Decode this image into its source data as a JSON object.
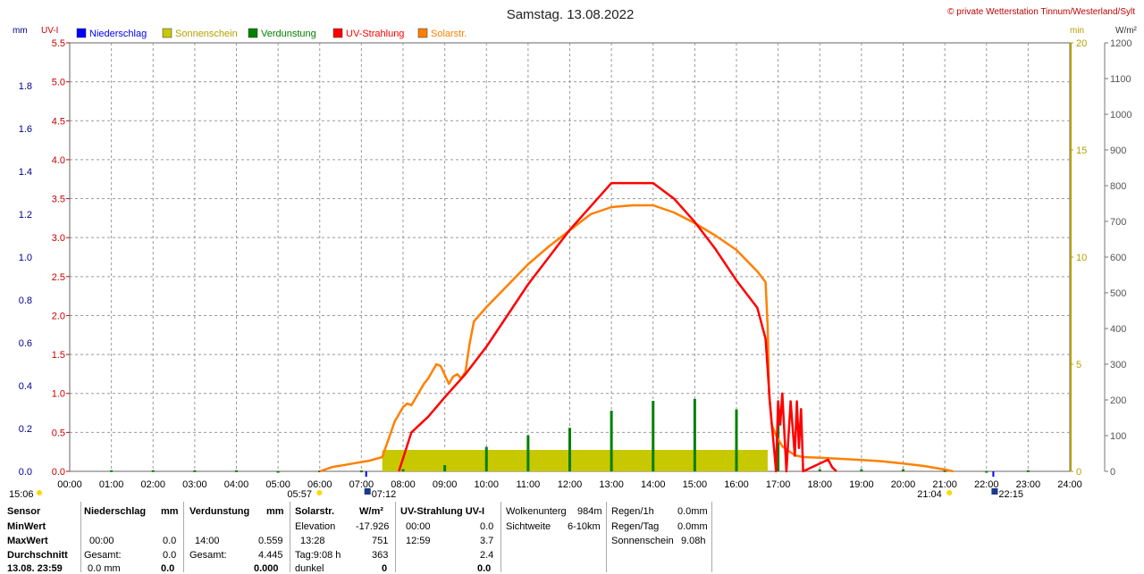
{
  "header": {
    "title": "Samstag. 13.08.2022",
    "copyright": "© private Wetterstation Tinnum/Westerland/Sylt",
    "unit_left_mm": "mm",
    "unit_left_uv": "UV-I",
    "unit_right_min": "min",
    "unit_right_wm2": "W/m²"
  },
  "legend": [
    {
      "label": "Niederschlag",
      "color": "#0000ff"
    },
    {
      "label": "Sonnenschein",
      "color": "#c8c800"
    },
    {
      "label": "Verdunstung",
      "color": "#008000"
    },
    {
      "label": "UV-Strahlung",
      "color": "#ff0000"
    },
    {
      "label": "Solarstr.",
      "color": "#ff8000"
    }
  ],
  "chart_data": {
    "type": "line",
    "x_ticks": [
      "00:00",
      "01:00",
      "02:00",
      "03:00",
      "04:00",
      "05:00",
      "06:00",
      "07:00",
      "08:00",
      "09:00",
      "10:00",
      "11:00",
      "12:00",
      "13:00",
      "14:00",
      "15:00",
      "16:00",
      "17:00",
      "18:00",
      "19:00",
      "20:00",
      "21:00",
      "22:00",
      "23:00",
      "24:00"
    ],
    "axes": {
      "mm": {
        "ticks": [
          "0.0",
          "0.2",
          "0.4",
          "0.6",
          "0.8",
          "1.0",
          "1.2",
          "1.4",
          "1.6",
          "1.8"
        ],
        "ylim": [
          0,
          2.0
        ],
        "color": "#00008b"
      },
      "uv": {
        "ticks": [
          "0.0",
          "0.5",
          "1.0",
          "1.5",
          "2.0",
          "2.5",
          "3.0",
          "3.5",
          "4.0",
          "4.5",
          "5.0",
          "5.5"
        ],
        "ylim": [
          0,
          5.5
        ],
        "color": "#c80000"
      },
      "min": {
        "ticks": [
          "0",
          "5",
          "10",
          "15",
          "20"
        ],
        "ylim": [
          0,
          20
        ],
        "color": "#b4a000"
      },
      "wm2": {
        "ticks": [
          "0",
          "100",
          "200",
          "300",
          "400",
          "500",
          "600",
          "700",
          "800",
          "900",
          "1000",
          "1100",
          "1200"
        ],
        "ylim": [
          0,
          1200
        ],
        "color": "#555555"
      }
    },
    "sun_markers": {
      "sunrise": "05:57",
      "sunset": "21:04",
      "dawn_start": "07:12",
      "dusk_end": "22:15",
      "left": "15:06"
    },
    "series": [
      {
        "name": "Solarstr.",
        "unit": "W/m²",
        "color": "#ff8000",
        "points": [
          [
            6.0,
            0
          ],
          [
            6.3,
            12
          ],
          [
            6.8,
            22
          ],
          [
            7.2,
            30
          ],
          [
            7.5,
            40
          ],
          [
            7.65,
            90
          ],
          [
            7.8,
            140
          ],
          [
            8.0,
            180
          ],
          [
            8.1,
            190
          ],
          [
            8.2,
            185
          ],
          [
            8.3,
            205
          ],
          [
            8.5,
            245
          ],
          [
            8.6,
            260
          ],
          [
            8.75,
            290
          ],
          [
            8.8,
            300
          ],
          [
            8.9,
            295
          ],
          [
            9.0,
            270
          ],
          [
            9.1,
            245
          ],
          [
            9.2,
            265
          ],
          [
            9.3,
            272
          ],
          [
            9.4,
            260
          ],
          [
            9.5,
            280
          ],
          [
            9.6,
            360
          ],
          [
            9.7,
            420
          ],
          [
            10.0,
            460
          ],
          [
            10.5,
            520
          ],
          [
            11.0,
            580
          ],
          [
            11.5,
            630
          ],
          [
            12.0,
            675
          ],
          [
            12.5,
            720
          ],
          [
            13.0,
            740
          ],
          [
            13.5,
            745
          ],
          [
            14.0,
            745
          ],
          [
            14.5,
            725
          ],
          [
            15.0,
            695
          ],
          [
            15.5,
            660
          ],
          [
            16.0,
            620
          ],
          [
            16.5,
            560
          ],
          [
            16.7,
            530
          ],
          [
            16.75,
            400
          ],
          [
            16.78,
            220
          ],
          [
            16.85,
            130
          ],
          [
            16.95,
            100
          ],
          [
            17.1,
            70
          ],
          [
            17.4,
            45
          ],
          [
            17.6,
            40
          ],
          [
            18.0,
            38
          ],
          [
            18.5,
            35
          ],
          [
            19.0,
            32
          ],
          [
            19.5,
            28
          ],
          [
            20.0,
            22
          ],
          [
            20.5,
            15
          ],
          [
            21.0,
            5
          ],
          [
            21.2,
            0
          ]
        ]
      },
      {
        "name": "UV-Strahlung",
        "unit": "UV-I",
        "color": "#ff0000",
        "points": [
          [
            7.9,
            0
          ],
          [
            8.2,
            0.5
          ],
          [
            8.6,
            0.7
          ],
          [
            9.0,
            0.95
          ],
          [
            9.5,
            1.25
          ],
          [
            10.0,
            1.6
          ],
          [
            10.5,
            2.0
          ],
          [
            11.0,
            2.4
          ],
          [
            11.5,
            2.75
          ],
          [
            12.0,
            3.1
          ],
          [
            12.5,
            3.4
          ],
          [
            13.0,
            3.7
          ],
          [
            13.5,
            3.7
          ],
          [
            14.0,
            3.7
          ],
          [
            14.5,
            3.5
          ],
          [
            15.0,
            3.2
          ],
          [
            15.5,
            2.85
          ],
          [
            16.0,
            2.45
          ],
          [
            16.5,
            2.1
          ],
          [
            16.7,
            1.7
          ],
          [
            16.75,
            1.3
          ],
          [
            16.8,
            0.9
          ],
          [
            16.85,
            0.6
          ],
          [
            16.9,
            0.3
          ],
          [
            16.95,
            0
          ],
          [
            17.0,
            0.9
          ],
          [
            17.05,
            0.6
          ],
          [
            17.1,
            1.0
          ],
          [
            17.2,
            0
          ],
          [
            17.3,
            0.9
          ],
          [
            17.4,
            0.2
          ],
          [
            17.45,
            0.9
          ],
          [
            17.5,
            0.3
          ],
          [
            17.55,
            0.8
          ],
          [
            17.6,
            0
          ],
          [
            18.2,
            0.15
          ],
          [
            18.3,
            0.05
          ],
          [
            18.4,
            0
          ]
        ]
      }
    ],
    "bars": [
      {
        "name": "Sonnenschein",
        "unit": "min",
        "color": "#c8c800",
        "from": "07:30",
        "to": "16:45",
        "value": 1.0
      },
      {
        "name": "Verdunstung",
        "unit": "mm",
        "color": "#008000",
        "hours": [
          1,
          2,
          3,
          4,
          5,
          6,
          7,
          8,
          9,
          10,
          11,
          12,
          13,
          14,
          15,
          16,
          17,
          18,
          19,
          20,
          21,
          22,
          23
        ],
        "values": [
          0.005,
          0.005,
          0.005,
          0.005,
          0.002,
          0.004,
          0.004,
          0.01,
          0.029,
          0.114,
          0.168,
          0.203,
          0.283,
          0.329,
          0.338,
          0.289,
          0.241,
          0.01,
          0.01,
          0.01,
          0.005,
          0.002,
          0.005
        ]
      }
    ]
  },
  "table": {
    "rows": [
      "Sensor",
      "MinWert",
      "MaxWert",
      "Durchschnitt",
      "13.08. 23:59"
    ],
    "niederschlag": {
      "header": "Niederschlag",
      "unit": "mm",
      "max_time": "00:00",
      "max": "0.0",
      "total_label": "Gesamt:",
      "total": "0.0",
      "cur": "0.0 mm",
      "avg": "0.0"
    },
    "verdunstung": {
      "header": "Verdunstung",
      "unit": "mm",
      "max_time": "14:00",
      "max": "0.559",
      "total_label": "Gesamt:",
      "total": "4.445",
      "cur": "0.000"
    },
    "solar": {
      "header": "Solarstr.",
      "unit": "W/m²",
      "elev_label": "Elevation",
      "elev": "-17.926",
      "max_time": "13:28",
      "max": "751",
      "day_label": "Tag:9:08 h",
      "day": "363",
      "dark_label": "dunkel",
      "dark": "0"
    },
    "uv": {
      "header": "UV-Strahlung UV-I",
      "min_time": "00:00",
      "min": "0.0",
      "max_time": "12:59",
      "max": "3.7",
      "avg": "2.4",
      "cur": "0.0"
    },
    "cloud": {
      "label1": "Wolkenunterg",
      "val1": "984m",
      "label2": "Sichtweite",
      "val2": "6-10km"
    },
    "rain": {
      "l1": "Regen/1h",
      "v1": "0.0mm",
      "l2": "Regen/Tag",
      "v2": "0.0mm",
      "l3": "Sonnenschein",
      "v3": "9.08h"
    }
  }
}
